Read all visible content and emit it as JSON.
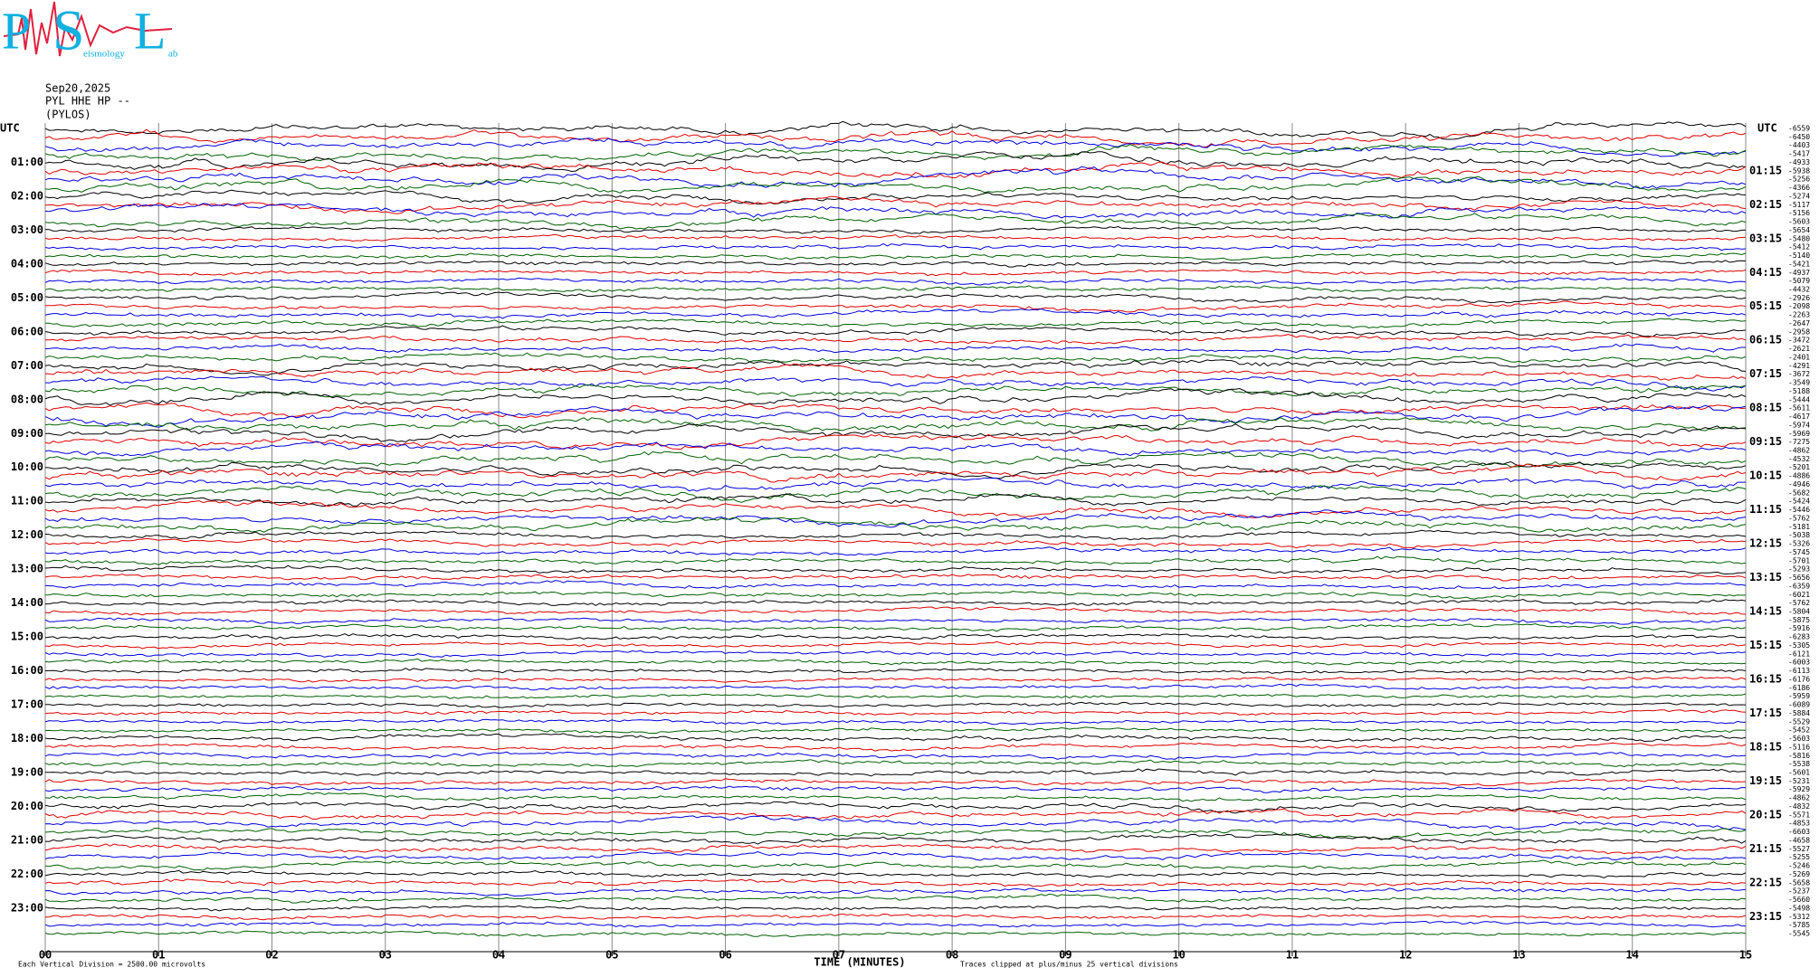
{
  "chart_data": {
    "type": "helicorder",
    "logo": [
      "P",
      "S",
      "L",
      "eismology",
      "ab"
    ],
    "title_lines": [
      "Sep20,2025",
      "PYL HHE HP --",
      "(PYLOS)"
    ],
    "corner_label": "UTC",
    "left_labels": [
      "01:00",
      "02:00",
      "03:00",
      "04:00",
      "05:00",
      "06:00",
      "07:00",
      "08:00",
      "09:00",
      "10:00",
      "11:00",
      "12:00",
      "13:00",
      "14:00",
      "15:00",
      "16:00",
      "17:00",
      "18:00",
      "19:00",
      "20:00",
      "21:00",
      "22:00",
      "23:00"
    ],
    "right_labels": [
      "01:15",
      "02:15",
      "03:15",
      "04:15",
      "05:15",
      "06:15",
      "07:15",
      "08:15",
      "09:15",
      "10:15",
      "11:15",
      "12:15",
      "13:15",
      "14:15",
      "15:15",
      "16:15",
      "17:15",
      "18:15",
      "19:15",
      "20:15",
      "21:15",
      "22:15",
      "23:15"
    ],
    "trace_offsets": [
      -6559,
      -6450,
      -4403,
      -5417,
      -4933,
      -5938,
      -5256,
      -4366,
      -5274,
      -5117,
      -5156,
      -5603,
      -5654,
      -5480,
      -5412,
      -5140,
      -5421,
      -4937,
      -5079,
      -4432,
      -2926,
      -2098,
      -2263,
      -2647,
      -2958,
      -3472,
      -2621,
      -2401,
      -4291,
      -3672,
      -3549,
      -5188,
      -5444,
      -5611,
      -4617,
      -5974,
      -5969,
      -7275,
      -4862,
      -4532,
      -5201,
      -4886,
      -4946,
      -5682,
      -5424,
      -5446,
      -5762,
      -5181,
      -5038,
      -5326,
      -5745,
      -5701,
      -5293,
      -5656,
      -6359,
      -6021,
      -5762,
      -5804,
      -5875,
      -5916,
      -6283,
      -5305,
      -6121,
      -6003,
      -6113,
      -6176,
      -6186,
      -5959,
      -6089,
      -5884,
      -5529,
      -5452,
      -5603,
      -5116,
      -5816,
      -5538,
      -5601,
      -5231,
      -5929,
      -4862,
      -4832,
      -5571,
      -4853,
      -6603,
      -4658,
      -5527,
      -5255,
      -5246,
      -5269,
      -5658,
      -5237,
      -5660,
      -5498,
      -5312,
      -5785,
      -5545
    ],
    "trace_colors": [
      "#000000",
      "#e00000",
      "#0000e0",
      "#006000"
    ],
    "xlim": [
      0,
      15
    ],
    "xticks": [
      {
        "value": 0,
        "label": "00"
      },
      {
        "value": 1,
        "label": "01"
      },
      {
        "value": 2,
        "label": "02"
      },
      {
        "value": 3,
        "label": "03"
      },
      {
        "value": 4,
        "label": "04"
      },
      {
        "value": 5,
        "label": "05"
      },
      {
        "value": 6,
        "label": "06"
      },
      {
        "value": 7,
        "label": "07"
      },
      {
        "value": 8,
        "label": "08"
      },
      {
        "value": 9,
        "label": "09"
      },
      {
        "value": 10,
        "label": "10"
      },
      {
        "value": 11,
        "label": "11"
      },
      {
        "value": 12,
        "label": "12"
      },
      {
        "value": 13,
        "label": "13"
      },
      {
        "value": 14,
        "label": "14"
      },
      {
        "value": 15,
        "label": "15"
      }
    ],
    "xlabel": "TIME (MINUTES)",
    "footnote_left": "Each Vertical Division = 2500.00 microvolts",
    "footnote_right": "Traces clipped at plus/minus 25 vertical divisions",
    "grid": true
  }
}
